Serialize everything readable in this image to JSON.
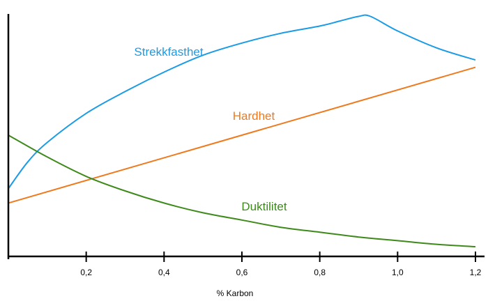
{
  "chart_data": {
    "type": "line",
    "xlabel": "% Karbon",
    "ylabel": "",
    "xlim": [
      0,
      1.2
    ],
    "ylim": [
      0,
      100
    ],
    "x_ticks": [
      "0,2",
      "0,4",
      "0,6",
      "0,8",
      "1,0",
      "1,2"
    ],
    "x_tick_values": [
      0.2,
      0.4,
      0.6,
      0.8,
      1.0,
      1.2
    ],
    "series": [
      {
        "name": "Strekkfasthet",
        "color": "#1a9be6",
        "x": [
          0,
          0.05,
          0.1,
          0.2,
          0.3,
          0.4,
          0.5,
          0.6,
          0.7,
          0.8,
          0.85,
          0.9,
          0.93,
          1.0,
          1.1,
          1.2
        ],
        "y": [
          28,
          39,
          47,
          59,
          68,
          76,
          83,
          88,
          92,
          95,
          97,
          99,
          99,
          93,
          86,
          81
        ]
      },
      {
        "name": "Hardhet",
        "color": "#ef7a1e",
        "x": [
          0,
          1.2
        ],
        "y": [
          22,
          78
        ]
      },
      {
        "name": "Duktilitet",
        "color": "#3d8a1a",
        "x": [
          0,
          0.1,
          0.2,
          0.3,
          0.4,
          0.5,
          0.6,
          0.7,
          0.8,
          0.9,
          1.0,
          1.1,
          1.2
        ],
        "y": [
          50,
          41,
          33,
          27,
          22,
          18,
          15,
          12,
          10,
          8,
          6.5,
          5,
          4
        ]
      }
    ]
  }
}
